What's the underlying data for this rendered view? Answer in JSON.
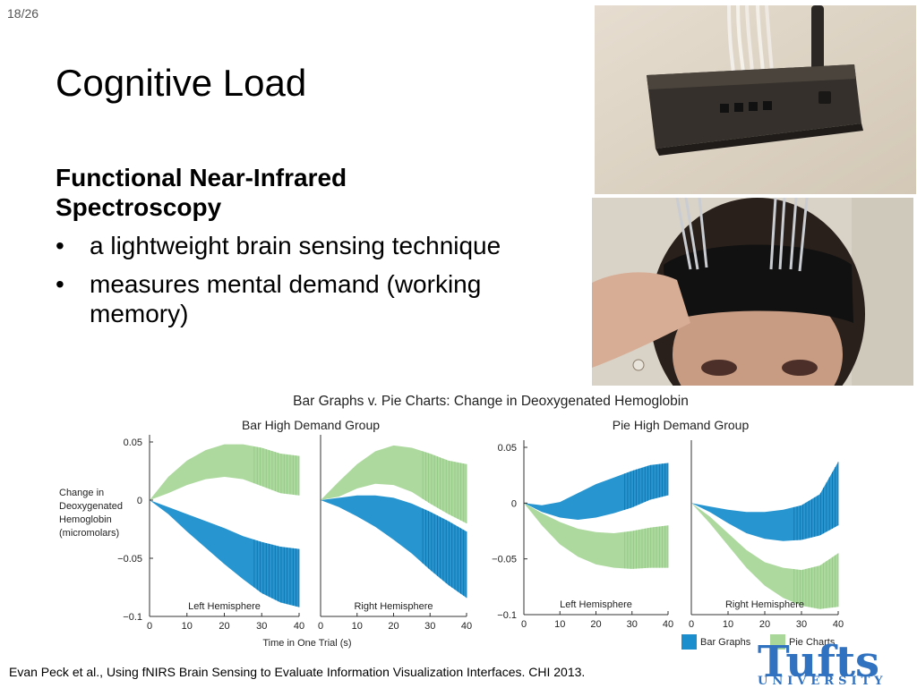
{
  "slide_number": "18/26",
  "title": "Cognitive Load",
  "subheading": "Functional Near-Infrared Spectroscopy",
  "bullets": [
    "a lightweight brain sensing technique",
    "measures mental demand (working memory)"
  ],
  "bullet_glyph": "•",
  "citation": "Evan Peck et al., Using fNIRS Brain Sensing to Evaluate Information Visualization Interfaces. CHI 2013.",
  "logo": {
    "text": "Tufts",
    "subtext": "UNIVERSITY",
    "color": "#3172c0"
  },
  "colors": {
    "bar_series": "#1b8fce",
    "pie_series": "#a9d79a"
  },
  "chart_data": {
    "type": "area",
    "title": "Bar Graphs v. Pie Charts: Change in Deoxygenated Hemoglobin",
    "ylabel": "Change in Deoxygenated Hemoglobin (micromolars)",
    "xlabel": "Time in One Trial (s)",
    "xlim": [
      0,
      40
    ],
    "ylim": [
      -0.1,
      0.06
    ],
    "x_ticks": [
      "0",
      "10",
      "20",
      "30",
      "40"
    ],
    "y_ticks": [
      "0.05",
      "0",
      "−0.05",
      "−0.1"
    ],
    "legend": {
      "position": "bottom-right",
      "entries": [
        "Bar Graphs",
        "Pie Charts"
      ]
    },
    "groups": [
      {
        "title": "Bar High Demand Group",
        "panels": [
          {
            "label": "Left Hemisphere",
            "x": [
              0,
              5,
              10,
              15,
              20,
              25,
              30,
              35,
              40
            ],
            "series": [
              {
                "name": "Bar Graphs",
                "color": "#1b8fce",
                "upper": [
                  0,
                  -0.006,
                  -0.012,
                  -0.018,
                  -0.024,
                  -0.031,
                  -0.036,
                  -0.04,
                  -0.042
                ],
                "lower": [
                  0,
                  -0.012,
                  -0.027,
                  -0.041,
                  -0.055,
                  -0.068,
                  -0.08,
                  -0.088,
                  -0.092
                ]
              },
              {
                "name": "Pie Charts",
                "color": "#a9d79a",
                "upper": [
                  0,
                  0.02,
                  0.034,
                  0.043,
                  0.048,
                  0.048,
                  0.045,
                  0.04,
                  0.038
                ],
                "lower": [
                  0,
                  0.006,
                  0.013,
                  0.018,
                  0.02,
                  0.018,
                  0.012,
                  0.006,
                  0.004
                ]
              }
            ]
          },
          {
            "label": "Right Hemisphere",
            "x": [
              0,
              5,
              10,
              15,
              20,
              25,
              30,
              35,
              40
            ],
            "series": [
              {
                "name": "Bar Graphs",
                "color": "#1b8fce",
                "upper": [
                  0,
                  0.002,
                  0.004,
                  0.004,
                  0.002,
                  -0.003,
                  -0.01,
                  -0.018,
                  -0.027
                ],
                "lower": [
                  0,
                  -0.006,
                  -0.014,
                  -0.023,
                  -0.034,
                  -0.046,
                  -0.06,
                  -0.073,
                  -0.084
                ]
              },
              {
                "name": "Pie Charts",
                "color": "#a9d79a",
                "upper": [
                  0,
                  0.016,
                  0.031,
                  0.042,
                  0.047,
                  0.045,
                  0.04,
                  0.034,
                  0.031
                ],
                "lower": [
                  0,
                  0.003,
                  0.01,
                  0.014,
                  0.013,
                  0.007,
                  -0.003,
                  -0.012,
                  -0.02
                ]
              }
            ]
          }
        ]
      },
      {
        "title": "Pie High Demand Group",
        "panels": [
          {
            "label": "Left Hemisphere",
            "x": [
              0,
              5,
              10,
              15,
              20,
              25,
              30,
              35,
              40
            ],
            "series": [
              {
                "name": "Bar Graphs",
                "color": "#1b8fce",
                "upper": [
                  0,
                  -0.002,
                  0.001,
                  0.009,
                  0.017,
                  0.023,
                  0.029,
                  0.034,
                  0.036
                ],
                "lower": [
                  0,
                  -0.008,
                  -0.013,
                  -0.015,
                  -0.013,
                  -0.009,
                  -0.004,
                  0.003,
                  0.007
                ]
              },
              {
                "name": "Pie Charts",
                "color": "#a9d79a",
                "upper": [
                  0,
                  -0.009,
                  -0.017,
                  -0.023,
                  -0.026,
                  -0.027,
                  -0.025,
                  -0.022,
                  -0.02
                ]
              },
              {
                "name": "Pie Charts lower",
                "color": "#a9d79a",
                "lower": [
                  0,
                  -0.02,
                  -0.037,
                  -0.048,
                  -0.055,
                  -0.058,
                  -0.059,
                  -0.058,
                  -0.058
                ]
              }
            ]
          },
          {
            "label": "Right Hemisphere",
            "x": [
              0,
              5,
              10,
              15,
              20,
              25,
              30,
              35,
              40
            ],
            "series": [
              {
                "name": "Bar Graphs",
                "color": "#1b8fce",
                "upper": [
                  0,
                  -0.003,
                  -0.006,
                  -0.008,
                  -0.008,
                  -0.006,
                  -0.002,
                  0.008,
                  0.037
                ],
                "lower": [
                  0,
                  -0.008,
                  -0.018,
                  -0.027,
                  -0.032,
                  -0.034,
                  -0.033,
                  -0.029,
                  -0.02
                ]
              },
              {
                "name": "Pie Charts",
                "color": "#a9d79a",
                "upper": [
                  0,
                  -0.012,
                  -0.027,
                  -0.042,
                  -0.053,
                  -0.058,
                  -0.06,
                  -0.056,
                  -0.045
                ],
                "lower": [
                  0,
                  -0.018,
                  -0.038,
                  -0.058,
                  -0.074,
                  -0.085,
                  -0.092,
                  -0.095,
                  -0.093
                ]
              }
            ]
          }
        ]
      }
    ]
  }
}
